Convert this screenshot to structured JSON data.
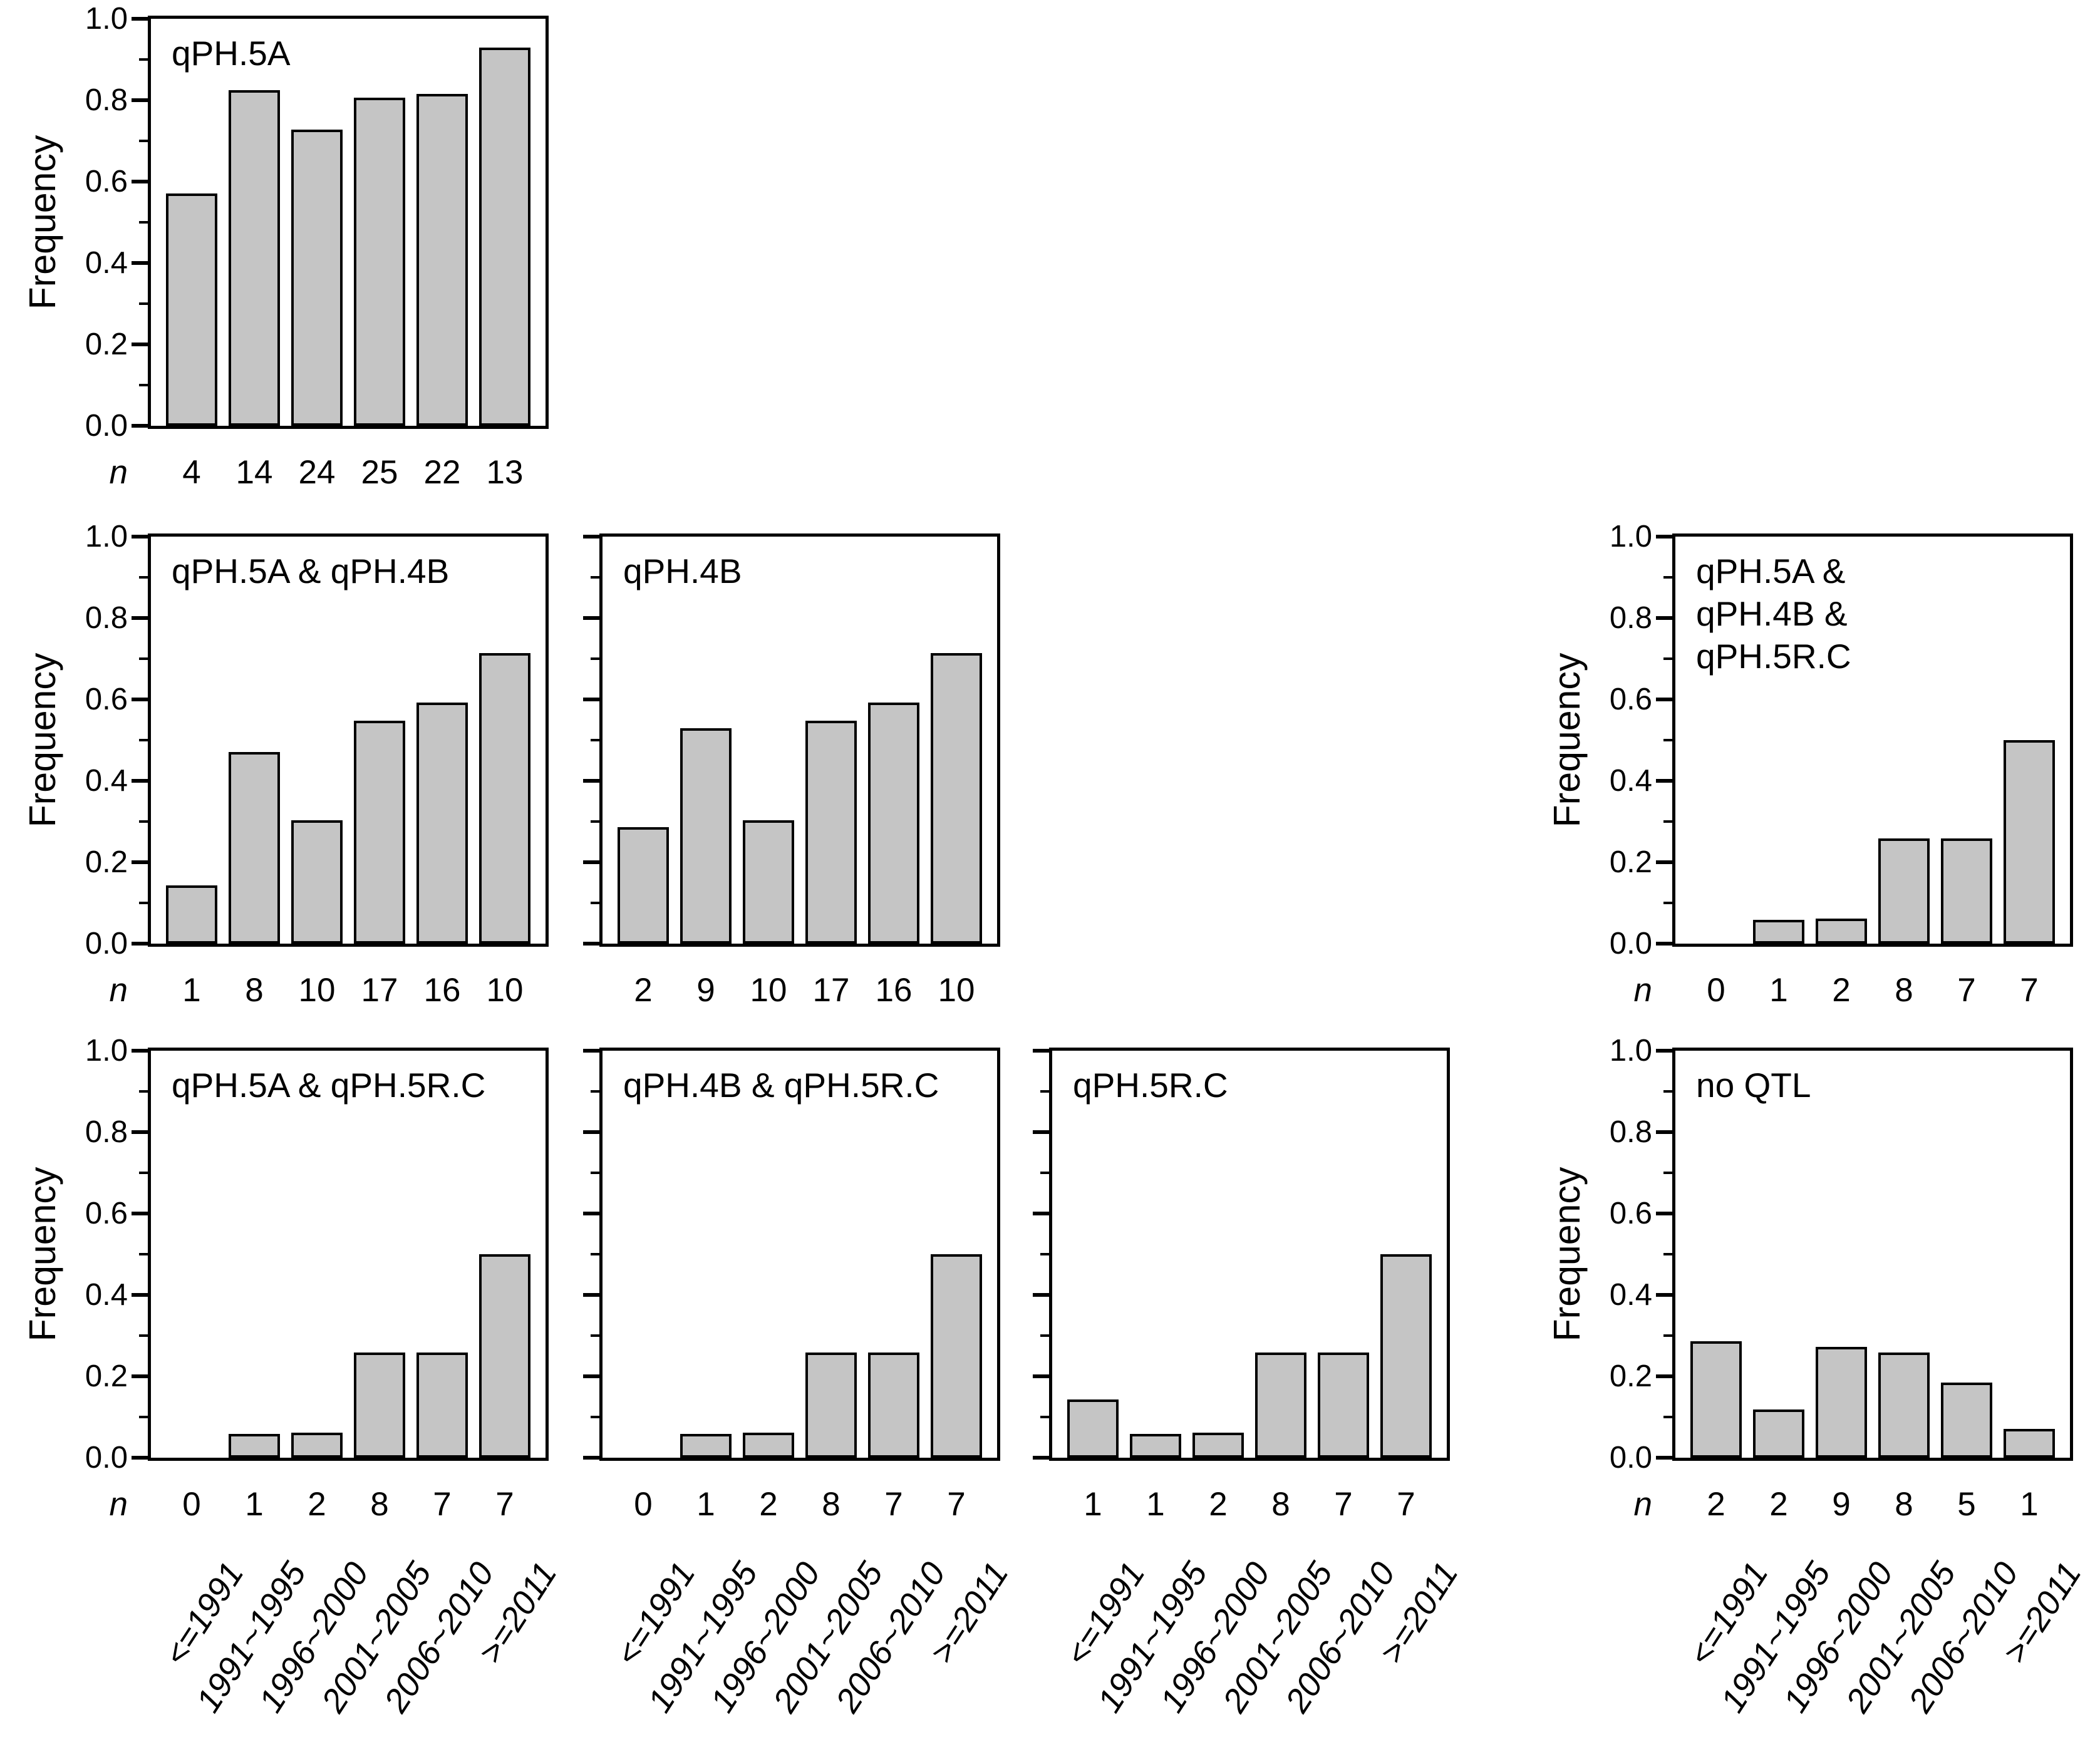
{
  "colors": {
    "bar_fill": "#c5c5c5",
    "bar_border": "#000000",
    "axis": "#000000",
    "text": "#000000",
    "background": "#ffffff"
  },
  "axes": {
    "ylabel": "Frequency",
    "n_label": "n",
    "y_tick_labels": [
      "0.0",
      "0.2",
      "0.4",
      "0.6",
      "0.8",
      "1.0"
    ],
    "categories": [
      "<=1991",
      "1991~1995",
      "1996~2000",
      "2001~2005",
      "2006~2010",
      ">=2011"
    ],
    "ylim": [
      0,
      1
    ],
    "grid": false
  },
  "chart_data": [
    {
      "id": "qph5a",
      "type": "bar",
      "title": "qPH.5A",
      "title_lines": [
        "qPH.5A"
      ],
      "row": 0,
      "col": 0,
      "show_y_labels": true,
      "show_y_axis_label": true,
      "show_n_label": true,
      "show_x_labels": false,
      "categories": [
        "<=1991",
        "1991~1995",
        "1996~2000",
        "2001~2005",
        "2006~2010",
        ">=2011"
      ],
      "values": [
        0.571,
        0.824,
        0.727,
        0.806,
        0.815,
        0.929
      ],
      "n": [
        4,
        14,
        24,
        25,
        22,
        13
      ],
      "ylabel": "Frequency",
      "ylim": [
        0,
        1
      ]
    },
    {
      "id": "qph5a-qph4b",
      "type": "bar",
      "title": "qPH.5A & qPH.4B",
      "title_lines": [
        "qPH.5A & qPH.4B"
      ],
      "row": 1,
      "col": 0,
      "show_y_labels": true,
      "show_y_axis_label": true,
      "show_n_label": true,
      "show_x_labels": false,
      "categories": [
        "<=1991",
        "1991~1995",
        "1996~2000",
        "2001~2005",
        "2006~2010",
        ">=2011"
      ],
      "values": [
        0.143,
        0.471,
        0.303,
        0.548,
        0.593,
        0.714
      ],
      "n": [
        1,
        8,
        10,
        17,
        16,
        10
      ],
      "ylabel": "Frequency",
      "ylim": [
        0,
        1
      ]
    },
    {
      "id": "qph4b",
      "type": "bar",
      "title": "qPH.4B",
      "title_lines": [
        "qPH.4B"
      ],
      "row": 1,
      "col": 1,
      "show_y_labels": false,
      "show_y_axis_label": false,
      "show_n_label": false,
      "show_x_labels": false,
      "categories": [
        "<=1991",
        "1991~1995",
        "1996~2000",
        "2001~2005",
        "2006~2010",
        ">=2011"
      ],
      "values": [
        0.286,
        0.529,
        0.303,
        0.548,
        0.593,
        0.714
      ],
      "n": [
        2,
        9,
        10,
        17,
        16,
        10
      ],
      "ylabel": "Frequency",
      "ylim": [
        0,
        1
      ]
    },
    {
      "id": "qph5a-qph4b-qph5rc",
      "type": "bar",
      "title": "qPH.5A & qPH.4B & qPH.5R.C",
      "title_lines": [
        "qPH.5A &",
        "qPH.4B &",
        "qPH.5R.C"
      ],
      "row": 1,
      "col": 3,
      "show_y_labels": true,
      "show_y_axis_label": true,
      "show_n_label": true,
      "show_x_labels": false,
      "categories": [
        "<=1991",
        "1991~1995",
        "1996~2000",
        "2001~2005",
        "2006~2010",
        ">=2011"
      ],
      "values": [
        0,
        0.059,
        0.061,
        0.258,
        0.259,
        0.5
      ],
      "n": [
        0,
        1,
        2,
        8,
        7,
        7
      ],
      "ylabel": "Frequency",
      "ylim": [
        0,
        1
      ]
    },
    {
      "id": "qph5a-qph5rc",
      "type": "bar",
      "title": "qPH.5A & qPH.5R.C",
      "title_lines": [
        "qPH.5A & qPH.5R.C"
      ],
      "row": 2,
      "col": 0,
      "show_y_labels": true,
      "show_y_axis_label": true,
      "show_n_label": true,
      "show_x_labels": true,
      "categories": [
        "<=1991",
        "1991~1995",
        "1996~2000",
        "2001~2005",
        "2006~2010",
        ">=2011"
      ],
      "values": [
        0,
        0.059,
        0.061,
        0.258,
        0.259,
        0.5
      ],
      "n": [
        0,
        1,
        2,
        8,
        7,
        7
      ],
      "ylabel": "Frequency",
      "ylim": [
        0,
        1
      ]
    },
    {
      "id": "qph4b-qph5rc",
      "type": "bar",
      "title": "qPH.4B & qPH.5R.C",
      "title_lines": [
        "qPH.4B & qPH.5R.C"
      ],
      "row": 2,
      "col": 1,
      "show_y_labels": false,
      "show_y_axis_label": false,
      "show_n_label": false,
      "show_x_labels": true,
      "categories": [
        "<=1991",
        "1991~1995",
        "1996~2000",
        "2001~2005",
        "2006~2010",
        ">=2011"
      ],
      "values": [
        0,
        0.059,
        0.061,
        0.258,
        0.259,
        0.5
      ],
      "n": [
        0,
        1,
        2,
        8,
        7,
        7
      ],
      "ylabel": "Frequency",
      "ylim": [
        0,
        1
      ]
    },
    {
      "id": "qph5rc",
      "type": "bar",
      "title": "qPH.5R.C",
      "title_lines": [
        "qPH.5R.C"
      ],
      "row": 2,
      "col": 2,
      "show_y_labels": false,
      "show_y_axis_label": false,
      "show_n_label": false,
      "show_x_labels": true,
      "categories": [
        "<=1991",
        "1991~1995",
        "1996~2000",
        "2001~2005",
        "2006~2010",
        ">=2011"
      ],
      "values": [
        0.143,
        0.059,
        0.061,
        0.258,
        0.259,
        0.5
      ],
      "n": [
        1,
        1,
        2,
        8,
        7,
        7
      ],
      "ylabel": "Frequency",
      "ylim": [
        0,
        1
      ]
    },
    {
      "id": "no-qtl",
      "type": "bar",
      "title": "no QTL",
      "title_lines": [
        "no QTL"
      ],
      "row": 2,
      "col": 3,
      "show_y_labels": true,
      "show_y_axis_label": true,
      "show_n_label": true,
      "show_x_labels": true,
      "categories": [
        "<=1991",
        "1991~1995",
        "1996~2000",
        "2001~2005",
        "2006~2010",
        ">=2011"
      ],
      "values": [
        0.286,
        0.118,
        0.273,
        0.258,
        0.185,
        0.071
      ],
      "n": [
        2,
        2,
        9,
        8,
        5,
        1
      ],
      "ylabel": "Frequency",
      "ylim": [
        0,
        1
      ]
    }
  ]
}
